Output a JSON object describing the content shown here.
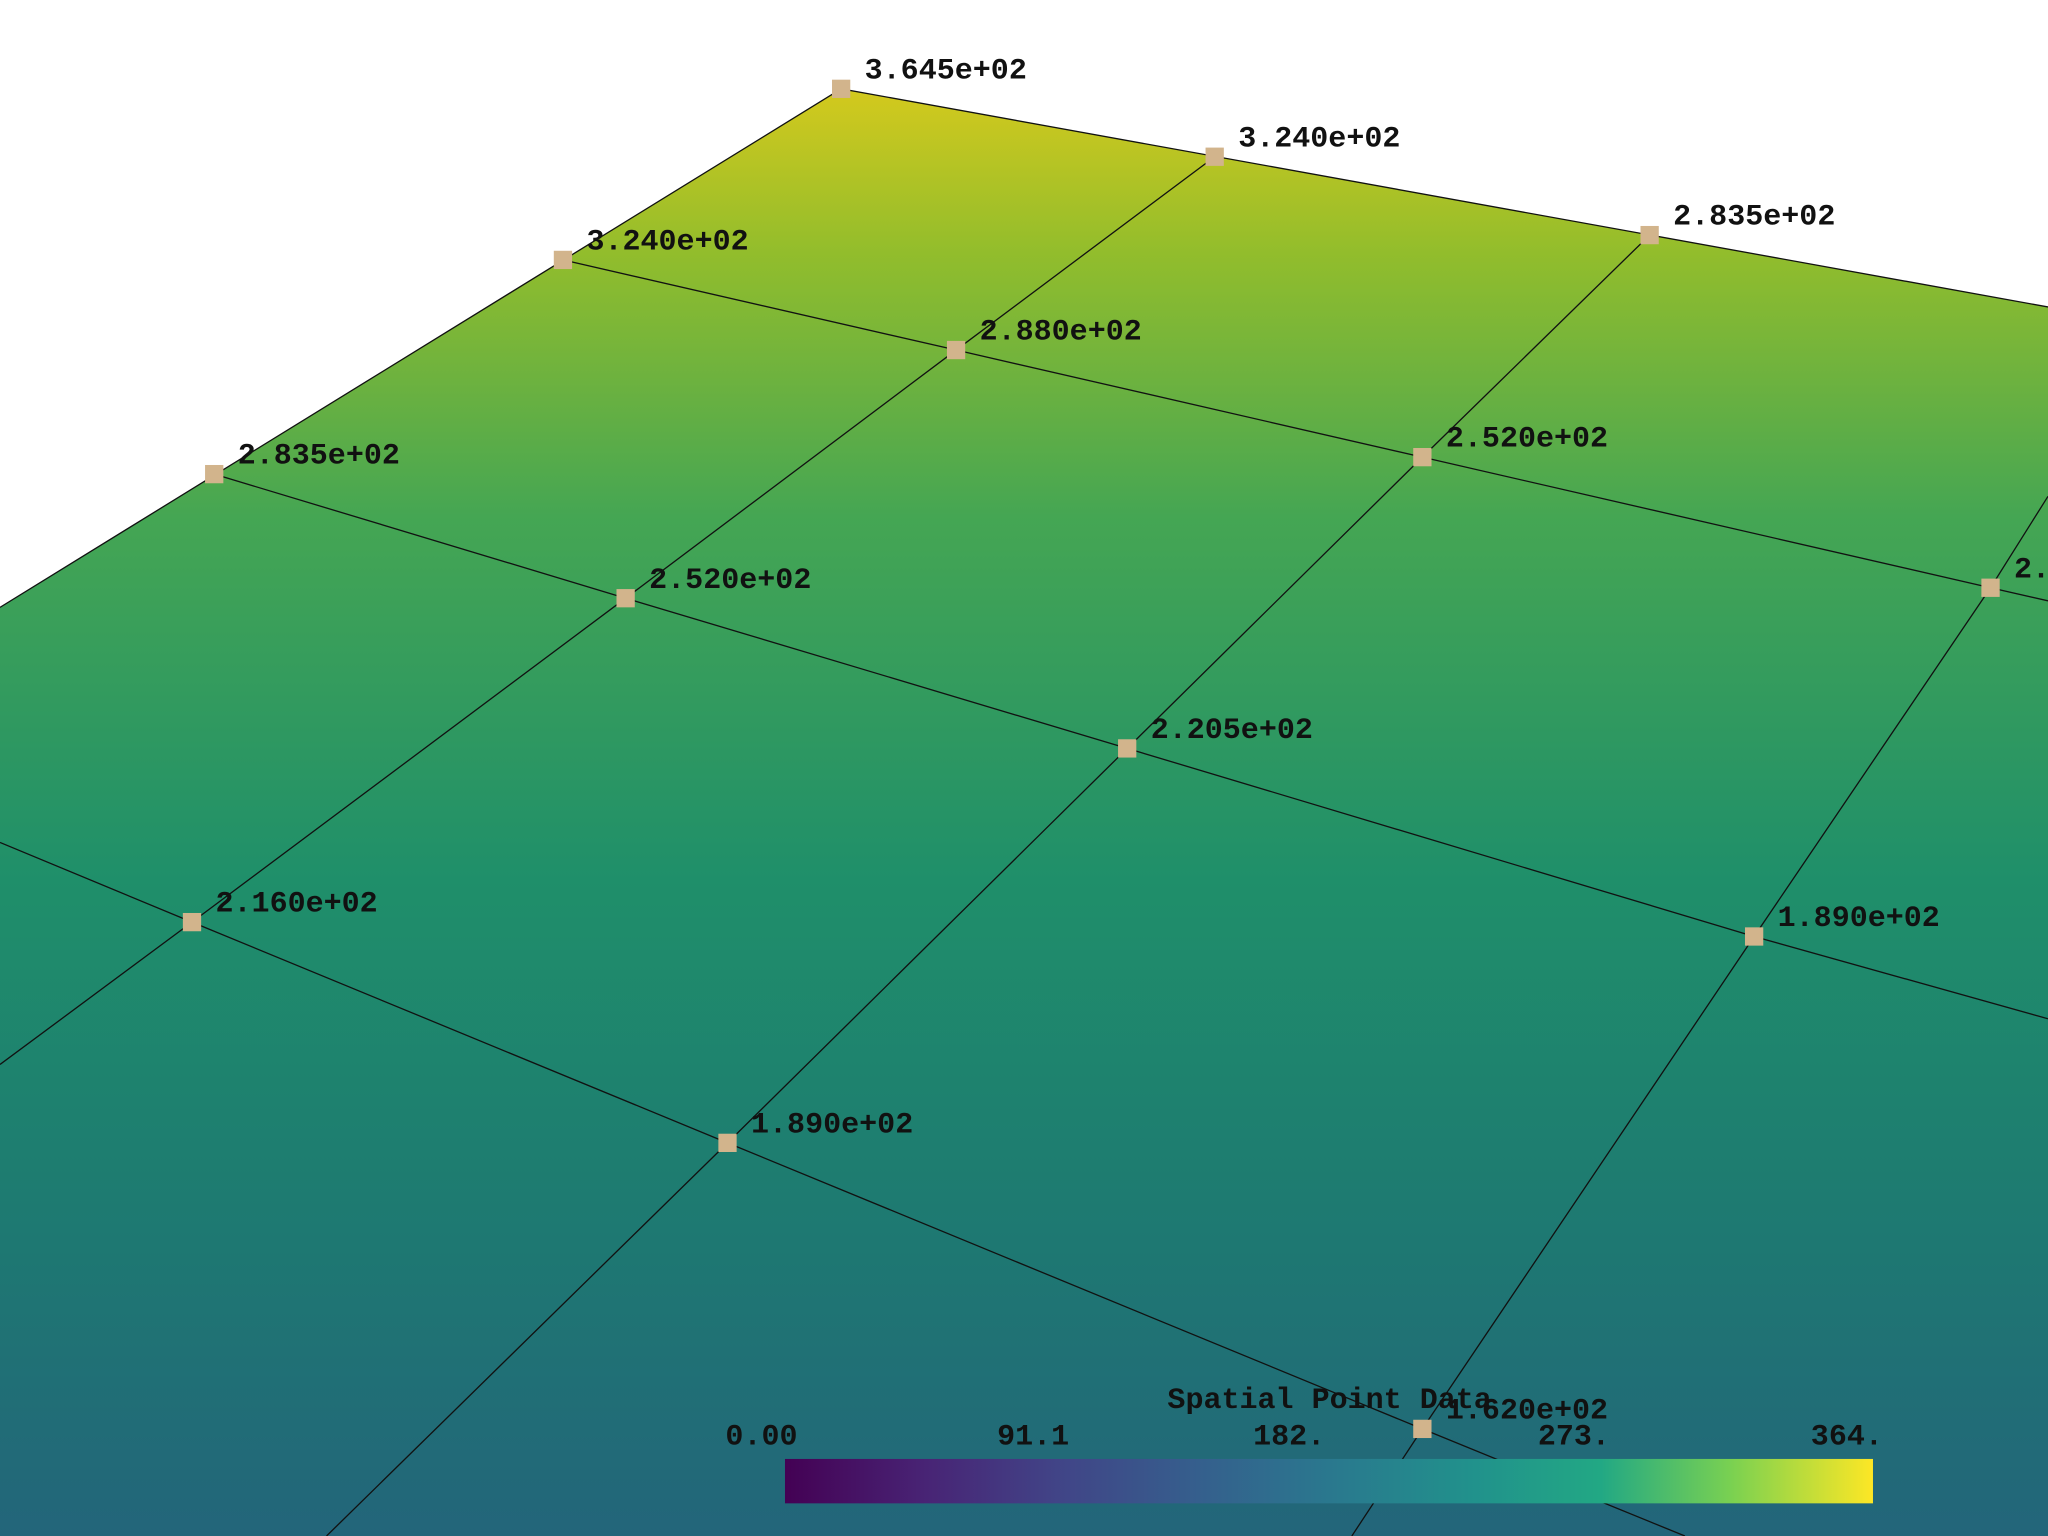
{
  "points": [
    {
      "label": "3.645e+02"
    },
    {
      "label": "3.240e+02"
    },
    {
      "label": "2.835e+02"
    },
    {
      "label": "3.240e+02"
    },
    {
      "label": "2.880e+02"
    },
    {
      "label": "2.520e+02"
    },
    {
      "label": "2."
    },
    {
      "label": "2.835e+02"
    },
    {
      "label": "2.520e+02"
    },
    {
      "label": "2.205e+02"
    },
    {
      "label": "2.160e+02"
    },
    {
      "label": "1.890e+02"
    },
    {
      "label": "1.890e+02"
    },
    {
      "label": "1.620e+02"
    }
  ],
  "colorbar": {
    "title": "Spatial Point Data",
    "tick_labels": [
      "0.00",
      "91.1",
      "182.",
      "273.",
      "364."
    ]
  }
}
